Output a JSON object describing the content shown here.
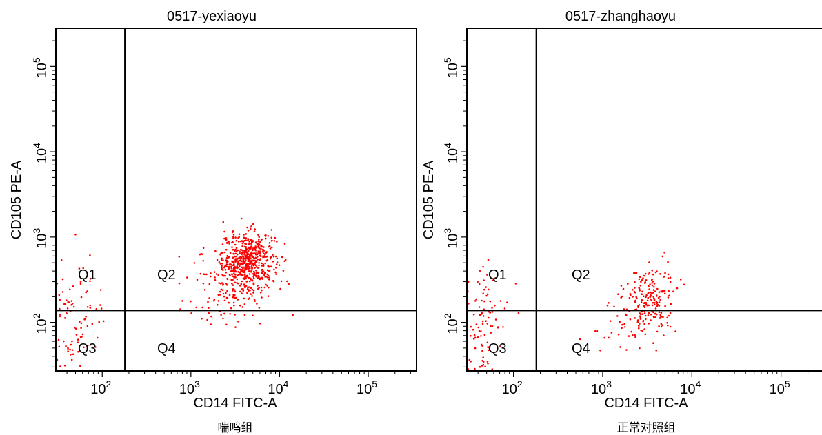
{
  "figure": {
    "panels": [
      {
        "title": "0517-yexiaoyu",
        "caption": "喘鸣组",
        "xlabel": "CD14 FITC-A",
        "ylabel": "CD105 PE-A",
        "quadrants": [
          "Q1",
          "Q2",
          "Q3",
          "Q4"
        ]
      },
      {
        "title": "0517-zhanghaoyu",
        "caption": "正常对照组",
        "xlabel": "CD14 FITC-A",
        "ylabel": "CD105 PE-A",
        "quadrants": [
          "Q1",
          "Q2",
          "Q3",
          "Q4"
        ]
      }
    ]
  },
  "chart_data": [
    {
      "type": "scatter",
      "title": "0517-yexiaoyu",
      "caption": "喘鸣组",
      "xlabel": "CD14 FITC-A",
      "ylabel": "CD105 PE-A",
      "x_scale": "log",
      "y_scale": "log",
      "xlim": [
        30,
        350000
      ],
      "ylim": [
        27,
        280000
      ],
      "x_ticks": [
        {
          "value": 100,
          "label": "10^2"
        },
        {
          "value": 1000,
          "label": "10^3"
        },
        {
          "value": 10000,
          "label": "10^4"
        },
        {
          "value": 100000,
          "label": "10^5"
        }
      ],
      "y_ticks": [
        {
          "value": 100,
          "label": "10^2"
        },
        {
          "value": 1000,
          "label": "10^3"
        },
        {
          "value": 10000,
          "label": "10^4"
        },
        {
          "value": 100000,
          "label": "10^5"
        }
      ],
      "gate": {
        "x": 180,
        "y": 138
      },
      "quadrant_labels": [
        "Q1",
        "Q2",
        "Q3",
        "Q4"
      ],
      "point_color": "#ff0000",
      "clusters": [
        {
          "cx": 4500,
          "cy": 550,
          "sx": 0.15,
          "sy": 0.16,
          "count": 520
        },
        {
          "cx": 3200,
          "cy": 320,
          "sx": 0.22,
          "sy": 0.2,
          "count": 140
        },
        {
          "cx": 1800,
          "cy": 180,
          "sx": 0.28,
          "sy": 0.2,
          "count": 40
        },
        {
          "cx": 50,
          "cy": 120,
          "sx": 0.18,
          "sy": 0.3,
          "count": 75
        },
        {
          "cx": 40,
          "cy": 40,
          "sx": 0.1,
          "sy": 0.15,
          "count": 25
        }
      ]
    },
    {
      "type": "scatter",
      "title": "0517-zhanghaoyu",
      "caption": "正常对照组",
      "xlabel": "CD14 FITC-A",
      "ylabel": "CD105 PE-A",
      "x_scale": "log",
      "y_scale": "log",
      "xlim": [
        30,
        350000
      ],
      "ylim": [
        27,
        280000
      ],
      "x_ticks": [
        {
          "value": 100,
          "label": "10^2"
        },
        {
          "value": 1000,
          "label": "10^3"
        },
        {
          "value": 10000,
          "label": "10^4"
        },
        {
          "value": 100000,
          "label": "10^5"
        }
      ],
      "y_ticks": [
        {
          "value": 100,
          "label": "10^2"
        },
        {
          "value": 1000,
          "label": "10^3"
        },
        {
          "value": 10000,
          "label": "10^4"
        },
        {
          "value": 100000,
          "label": "10^5"
        }
      ],
      "gate": {
        "x": 180,
        "y": 138
      },
      "quadrant_labels": [
        "Q1",
        "Q2",
        "Q3",
        "Q4"
      ],
      "point_color": "#ff0000",
      "clusters": [
        {
          "cx": 3300,
          "cy": 190,
          "sx": 0.14,
          "sy": 0.2,
          "count": 200
        },
        {
          "cx": 2000,
          "cy": 90,
          "sx": 0.25,
          "sy": 0.18,
          "count": 40
        },
        {
          "cx": 45,
          "cy": 150,
          "sx": 0.15,
          "sy": 0.28,
          "count": 70
        },
        {
          "cx": 40,
          "cy": 40,
          "sx": 0.1,
          "sy": 0.15,
          "count": 30
        }
      ]
    }
  ]
}
